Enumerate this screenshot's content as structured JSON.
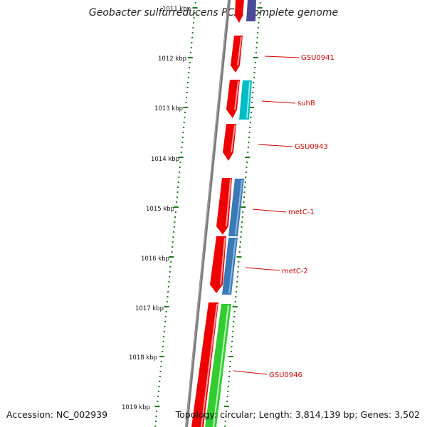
{
  "title": "Geobacter sulfurreducens PCA, complete genome",
  "footer": {
    "accession": "Accession: NC_002939",
    "topology": "Topology: circular; Length: 3,814,139 bp; Genes: 3,502"
  },
  "ticks": [
    {
      "label": "1011 kbp"
    },
    {
      "label": "1012 kbp"
    },
    {
      "label": "1013 kbp"
    },
    {
      "label": "1014 kbp"
    },
    {
      "label": "1015 kbp"
    },
    {
      "label": "1016 kbp"
    },
    {
      "label": "1017 kbp"
    },
    {
      "label": "1018 kbp"
    },
    {
      "label": "1019 kbp"
    }
  ],
  "gene_labels": [
    {
      "name": "GSU0941"
    },
    {
      "name": "suhB"
    },
    {
      "name": "GSU0943"
    },
    {
      "name": "metC-1"
    },
    {
      "name": "metC-2"
    },
    {
      "name": "GSU0946"
    }
  ],
  "colors": {
    "backbone": "#777777",
    "forward_gene": "#ee0000",
    "teal_gene": "#00bcc4",
    "blue_gene": "#3a7ab8",
    "green_gene": "#33cc33",
    "purple_gene": "#4a4a9a",
    "ticks": "#1a7a1a",
    "label_lines": "#cc0000"
  }
}
